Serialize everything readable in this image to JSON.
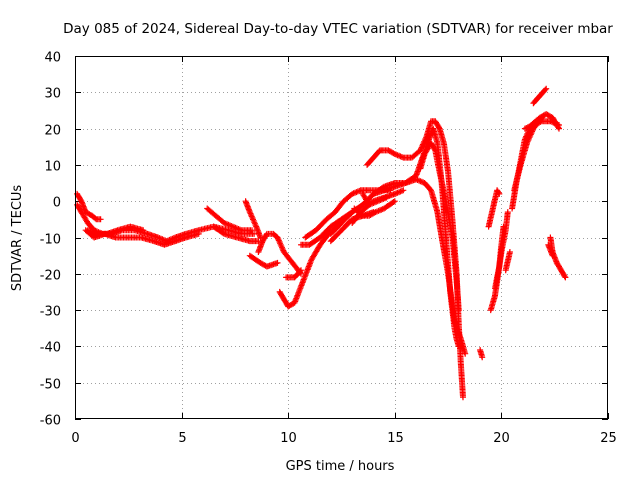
{
  "chart_data": {
    "type": "scatter",
    "title": "Day 085 of 2024, Sidereal Day-to-day VTEC variation (SDTVAR) for receiver mbar",
    "xlabel": "GPS time / hours",
    "ylabel": "SDTVAR / TECUs",
    "xlim": [
      0,
      25
    ],
    "ylim": [
      -60,
      40
    ],
    "xticks": [
      "0",
      "5",
      "10",
      "15",
      "20",
      "25"
    ],
    "yticks": [
      "-60",
      "-50",
      "-40",
      "-30",
      "-20",
      "-10",
      "0",
      "10",
      "20",
      "30",
      "40"
    ],
    "grid": true,
    "marker": "+",
    "color": "#ff0000",
    "tracks": [
      [
        [
          0.1,
          2
        ],
        [
          0.3,
          0
        ],
        [
          0.5,
          -3
        ],
        [
          0.8,
          -4
        ],
        [
          1.0,
          -5
        ],
        [
          1.2,
          -5
        ]
      ],
      [
        [
          0.1,
          -1
        ],
        [
          0.3,
          -3
        ],
        [
          0.6,
          -6
        ],
        [
          0.9,
          -8
        ],
        [
          1.3,
          -9
        ],
        [
          1.7,
          -9
        ],
        [
          2.2,
          -8
        ],
        [
          2.8,
          -8
        ],
        [
          3.4,
          -9
        ],
        [
          3.9,
          -10
        ],
        [
          4.3,
          -11
        ],
        [
          4.7,
          -10
        ],
        [
          5.2,
          -9
        ],
        [
          5.8,
          -8
        ],
        [
          6.5,
          -7
        ],
        [
          7.2,
          -8
        ],
        [
          7.8,
          -9
        ],
        [
          8.4,
          -9
        ]
      ],
      [
        [
          0.5,
          -8
        ],
        [
          0.9,
          -10
        ],
        [
          1.4,
          -9
        ],
        [
          1.9,
          -10
        ],
        [
          2.5,
          -10
        ],
        [
          3.1,
          -10
        ],
        [
          3.7,
          -11
        ],
        [
          4.2,
          -12
        ],
        [
          4.7,
          -11
        ],
        [
          5.2,
          -10
        ],
        [
          5.8,
          -9
        ]
      ],
      [
        [
          0.6,
          -8
        ],
        [
          1.0,
          -9
        ],
        [
          1.5,
          -9
        ],
        [
          2.0,
          -8
        ],
        [
          2.6,
          -7
        ],
        [
          3.2,
          -8
        ]
      ],
      [
        [
          6.2,
          -2
        ],
        [
          6.6,
          -4
        ],
        [
          7.0,
          -6
        ],
        [
          7.4,
          -7
        ],
        [
          7.8,
          -8
        ],
        [
          8.3,
          -8
        ]
      ],
      [
        [
          6.5,
          -7
        ],
        [
          7.0,
          -9
        ],
        [
          7.6,
          -10
        ],
        [
          8.2,
          -11
        ],
        [
          8.6,
          -11
        ]
      ],
      [
        [
          8.0,
          0
        ],
        [
          8.2,
          -3
        ],
        [
          8.5,
          -7
        ],
        [
          8.7,
          -10
        ]
      ],
      [
        [
          8.2,
          -15
        ],
        [
          8.7,
          -17
        ],
        [
          9.0,
          -18
        ],
        [
          9.5,
          -17
        ]
      ],
      [
        [
          8.6,
          -14
        ],
        [
          8.8,
          -11
        ],
        [
          9.0,
          -9
        ],
        [
          9.3,
          -9
        ],
        [
          9.5,
          -10
        ],
        [
          9.8,
          -14
        ],
        [
          10.2,
          -17
        ],
        [
          10.6,
          -20
        ]
      ],
      [
        [
          9.9,
          -21
        ],
        [
          10.3,
          -21
        ],
        [
          10.6,
          -19
        ]
      ],
      [
        [
          9.6,
          -25
        ],
        [
          9.8,
          -27
        ],
        [
          10.0,
          -29
        ],
        [
          10.3,
          -28
        ],
        [
          10.7,
          -22
        ],
        [
          11.1,
          -16
        ],
        [
          11.5,
          -12
        ],
        [
          11.9,
          -9
        ],
        [
          12.3,
          -7
        ]
      ],
      [
        [
          10.6,
          -12
        ],
        [
          11.0,
          -12
        ],
        [
          11.5,
          -10
        ],
        [
          12.0,
          -7
        ],
        [
          12.5,
          -5
        ],
        [
          13.0,
          -3
        ],
        [
          13.5,
          -1
        ],
        [
          14.0,
          0
        ],
        [
          14.5,
          1
        ],
        [
          15.0,
          2
        ],
        [
          15.4,
          3
        ]
      ],
      [
        [
          10.8,
          -10
        ],
        [
          11.3,
          -8
        ],
        [
          11.8,
          -5
        ],
        [
          12.2,
          -3
        ],
        [
          12.6,
          0
        ],
        [
          13.0,
          2
        ],
        [
          13.4,
          3
        ],
        [
          13.8,
          3
        ],
        [
          14.3,
          3
        ],
        [
          14.8,
          3
        ]
      ],
      [
        [
          12.0,
          -9
        ],
        [
          12.5,
          -6
        ],
        [
          13.0,
          -3
        ],
        [
          13.5,
          -1
        ],
        [
          14.0,
          2
        ],
        [
          14.5,
          4
        ],
        [
          15.0,
          5
        ],
        [
          15.5,
          5
        ],
        [
          16.0,
          6
        ],
        [
          16.4,
          5
        ],
        [
          16.7,
          3
        ],
        [
          17.0,
          -3
        ],
        [
          17.2,
          -10
        ],
        [
          17.5,
          -20
        ],
        [
          17.8,
          -33
        ],
        [
          18.1,
          -38
        ],
        [
          18.3,
          -42
        ]
      ],
      [
        [
          12.0,
          -11
        ],
        [
          12.5,
          -8
        ],
        [
          13.0,
          -5
        ],
        [
          13.5,
          -4
        ],
        [
          14.0,
          -3
        ]
      ],
      [
        [
          13.0,
          -6
        ],
        [
          13.4,
          -3
        ],
        [
          13.8,
          -1
        ],
        [
          14.2,
          0
        ],
        [
          14.6,
          1
        ]
      ],
      [
        [
          13.1,
          -2
        ],
        [
          13.5,
          -4
        ],
        [
          13.8,
          -4
        ],
        [
          14.1,
          -3
        ],
        [
          14.5,
          -2
        ],
        [
          15.0,
          0
        ]
      ],
      [
        [
          13.5,
          2
        ],
        [
          13.8,
          -1
        ]
      ],
      [
        [
          13.7,
          10
        ],
        [
          14.0,
          12
        ],
        [
          14.3,
          14
        ],
        [
          14.7,
          14
        ],
        [
          15.0,
          13
        ],
        [
          15.4,
          12
        ],
        [
          15.8,
          12
        ],
        [
          16.2,
          14
        ],
        [
          16.5,
          18
        ],
        [
          16.7,
          22
        ],
        [
          16.9,
          22
        ],
        [
          17.1,
          20
        ],
        [
          17.3,
          16
        ],
        [
          17.5,
          8
        ],
        [
          17.7,
          -5
        ],
        [
          17.9,
          -20
        ],
        [
          18.0,
          -34
        ],
        [
          18.1,
          -45
        ],
        [
          18.2,
          -54
        ]
      ],
      [
        [
          14.0,
          2
        ],
        [
          14.5,
          3
        ],
        [
          15.0,
          4
        ],
        [
          15.5,
          5
        ],
        [
          16.0,
          7
        ],
        [
          16.3,
          12
        ],
        [
          16.6,
          17
        ],
        [
          16.8,
          20
        ],
        [
          17.0,
          16
        ],
        [
          17.2,
          5
        ],
        [
          17.4,
          -10
        ],
        [
          17.6,
          -25
        ],
        [
          17.8,
          -35
        ],
        [
          17.9,
          -38
        ],
        [
          18.0,
          -40
        ]
      ],
      [
        [
          16.2,
          9
        ],
        [
          16.4,
          13
        ],
        [
          16.7,
          16
        ],
        [
          16.9,
          14
        ],
        [
          17.1,
          8
        ],
        [
          17.4,
          0
        ],
        [
          17.7,
          -10
        ],
        [
          17.9,
          -22
        ],
        [
          18.0,
          -30
        ]
      ],
      [
        [
          19.0,
          -41
        ],
        [
          19.1,
          -43
        ]
      ],
      [
        [
          19.4,
          -7
        ],
        [
          19.6,
          -2
        ],
        [
          19.8,
          3
        ],
        [
          19.9,
          2
        ]
      ],
      [
        [
          19.5,
          -30
        ],
        [
          19.7,
          -26
        ],
        [
          19.8,
          -22
        ],
        [
          20.0,
          -14
        ],
        [
          20.2,
          -8
        ],
        [
          20.3,
          -3
        ]
      ],
      [
        [
          19.7,
          -24
        ],
        [
          19.9,
          -18
        ],
        [
          20.0,
          -12
        ],
        [
          20.1,
          -7
        ]
      ],
      [
        [
          20.2,
          -19
        ],
        [
          20.4,
          -14
        ]
      ],
      [
        [
          20.5,
          -2
        ],
        [
          20.7,
          5
        ],
        [
          20.9,
          11
        ],
        [
          21.1,
          17
        ],
        [
          21.4,
          21
        ],
        [
          21.8,
          23
        ],
        [
          22.1,
          24
        ],
        [
          22.4,
          23
        ],
        [
          22.6,
          21
        ],
        [
          22.7,
          20
        ]
      ],
      [
        [
          20.6,
          3
        ],
        [
          20.9,
          10
        ],
        [
          21.2,
          16
        ],
        [
          21.5,
          20
        ],
        [
          21.9,
          23
        ]
      ],
      [
        [
          21.1,
          20
        ],
        [
          21.5,
          21
        ],
        [
          21.9,
          22
        ],
        [
          22.3,
          22
        ],
        [
          22.7,
          21
        ]
      ],
      [
        [
          21.5,
          27
        ],
        [
          21.8,
          29
        ],
        [
          22.1,
          31
        ]
      ],
      [
        [
          22.3,
          -10
        ],
        [
          22.4,
          -14
        ],
        [
          22.6,
          -17
        ],
        [
          22.8,
          -19
        ],
        [
          23.0,
          -21
        ]
      ],
      [
        [
          22.2,
          -12
        ],
        [
          22.4,
          -15
        ]
      ]
    ]
  }
}
